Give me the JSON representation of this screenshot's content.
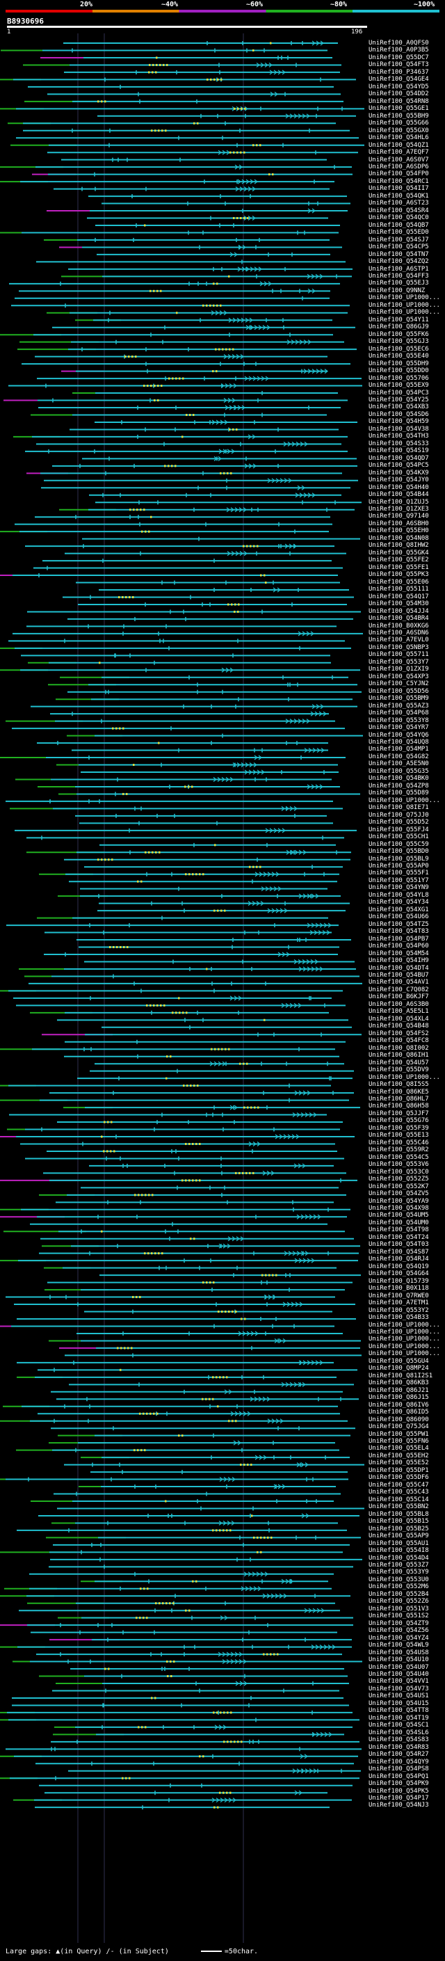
{
  "legend": {
    "labels": [
      "20%",
      "~40%",
      "~60%",
      "~80%",
      "~100%"
    ],
    "colors": [
      "#e00000",
      "#e08000",
      "#a020c0",
      "#20b020",
      "#20c0d0"
    ]
  },
  "header": {
    "sequence_id": "B8930696",
    "query_start": "1",
    "query_end": "196"
  },
  "hits": [
    "UniRef100_A0QFS0",
    "UniRef100_A0P3B5",
    "UniRef100_Q55DC7",
    "UniRef100_Q54FT3",
    "UniRef100_P34637",
    "UniRef100_Q54GE4",
    "UniRef100_Q54YD5",
    "UniRef100_Q54DD2",
    "UniRef100_Q54RN8",
    "UniRef100_Q55GE1",
    "UniRef100_Q55BH9",
    "UniRef100_Q55G66",
    "UniRef100_Q55GX0",
    "UniRef100_Q54HL6",
    "UniRef100_Q54QZ1",
    "UniRef100_A7EQF7",
    "UniRef100_A6S0V7",
    "UniRef100_A6SDP6",
    "UniRef100_Q54FP0",
    "UniRef100_Q54RC1",
    "UniRef100_Q54II7",
    "UniRef100_Q54QK1",
    "UniRef100_A6ST23",
    "UniRef100_Q54SR4",
    "UniRef100_Q54QC0",
    "UniRef100_Q54QB7",
    "UniRef100_Q55ED0",
    "UniRef100_Q54SJ7",
    "UniRef100_Q54CP5",
    "UniRef100_Q54TN7",
    "UniRef100_Q54ZQ2",
    "UniRef100_A6STP1",
    "UniRef100_Q54FF3",
    "UniRef100_Q55EJ3",
    "UniRef100_Q9NNZ",
    "UniRef100_UP1000...",
    "UniRef100_UP1000...",
    "UniRef100_UP1000...",
    "UniRef100_Q54Y11",
    "UniRef100_Q86GJ9",
    "UniRef100_Q55FK6",
    "UniRef100_Q55GJ3",
    "UniRef100_Q55EC6",
    "UniRef100_Q55E40",
    "UniRef100_Q55DH9",
    "UniRef100_Q55DD0",
    "UniRef100_Q55706",
    "UniRef100_Q55EX9",
    "UniRef100_Q54PC3",
    "UniRef100_Q54Y25",
    "UniRef100_Q54XB3",
    "UniRef100_Q54SD6",
    "UniRef100_Q54H59",
    "UniRef100_Q54V38",
    "UniRef100_Q54TH3",
    "UniRef100_Q54S33",
    "UniRef100_Q54S19",
    "UniRef100_Q54QD7",
    "UniRef100_Q54PC5",
    "UniRef100_Q54KX9",
    "UniRef100_Q54JY0",
    "UniRef100_Q54H40",
    "UniRef100_Q54B44",
    "UniRef100_Q1ZUJ5",
    "UniRef100_Q1ZXE3",
    "UniRef100_Q97140",
    "UniRef100_A6SBH0",
    "UniRef100_Q55EH0",
    "UniRef100_Q54N08",
    "UniRef100_Q8IHW2",
    "UniRef100_Q55GK4",
    "UniRef100_Q55FE2",
    "UniRef100_Q55FE1",
    "UniRef100_Q55PK3",
    "UniRef100_Q55E06",
    "UniRef100_Q55111",
    "UniRef100_Q54Q17",
    "UniRef100_Q54M30",
    "UniRef100_Q54JJ4",
    "UniRef100_Q54BR4",
    "UniRef100_B0XKG6",
    "UniRef100_A6SDN6",
    "UniRef100_A7EVL0",
    "UniRef100_Q5NBP3",
    "UniRef100_Q55711",
    "UniRef100_Q553Y7",
    "UniRef100_Q1ZXI9",
    "UniRef100_Q54XP3",
    "UniRef100_C5YJN2",
    "UniRef100_Q55D56",
    "UniRef100_Q55BM9",
    "UniRef100_Q55AZ3",
    "UniRef100_Q54P68",
    "UniRef100_Q553Y8",
    "UniRef100_Q54YR7",
    "UniRef100_Q54YQ6",
    "UniRef100_Q54UQ8",
    "UniRef100_Q54MP1",
    "UniRef100_Q54G82",
    "UniRef100_A5E5N0",
    "UniRef100_Q55G35",
    "UniRef100_Q54BK0",
    "UniRef100_Q54ZP8",
    "UniRef100_Q55D89",
    "UniRef100_UP1000...",
    "UniRef100_Q8IE71",
    "UniRef100_Q75JJ0",
    "UniRef100_Q55D52",
    "UniRef100_Q55FJ4",
    "UniRef100_Q55CH1",
    "UniRef100_Q55C59",
    "UniRef100_Q55BD0",
    "UniRef100_Q55BL9",
    "UniRef100_Q55AP0",
    "UniRef100_Q555F1",
    "UniRef100_Q551Y7",
    "UniRef100_Q54YN9",
    "UniRef100_Q54YL8",
    "UniRef100_Q54Y34",
    "UniRef100_Q54XG1",
    "UniRef100_Q54U66",
    "UniRef100_Q54TZ5",
    "UniRef100_Q54T83",
    "UniRef100_Q54PB7",
    "UniRef100_Q54P60",
    "UniRef100_Q54M54",
    "UniRef100_Q54IH9",
    "UniRef100_Q54DT4",
    "UniRef100_Q54BU7",
    "UniRef100_Q54AV1",
    "UniRef100_C7Q082",
    "UniRef100_B6KJF7",
    "UniRef100_A6S3B0",
    "UniRef100_A5E5L1",
    "UniRef100_Q54XL4",
    "UniRef100_Q54B48",
    "UniRef100_Q54FS2",
    "UniRef100_Q54FC8",
    "UniRef100_Q8I002",
    "UniRef100_Q86IH1",
    "UniRef100_Q54U57",
    "UniRef100_Q55DV9",
    "UniRef100_UP1000...",
    "UniRef100_Q8I5S5",
    "UniRef100_Q86KE5",
    "UniRef100_Q86HL7",
    "UniRef100_Q86H58",
    "UniRef100_Q5JJF7",
    "UniRef100_Q55G76",
    "UniRef100_Q55F39",
    "UniRef100_Q55E13",
    "UniRef100_Q55C46",
    "UniRef100_Q559R2",
    "UniRef100_Q554C5",
    "UniRef100_Q553V6",
    "UniRef100_Q553C0",
    "UniRef100_Q552Z5",
    "UniRef100_Q552K7",
    "UniRef100_Q54ZV5",
    "UniRef100_Q54YA9",
    "UniRef100_Q54X98",
    "UniRef100_Q54UM5",
    "UniRef100_Q54UM0",
    "UniRef100_Q54T98",
    "UniRef100_Q54T24",
    "UniRef100_Q54T03",
    "UniRef100_Q54S87",
    "UniRef100_Q54RJ4",
    "UniRef100_Q54Q19",
    "UniRef100_Q54G64",
    "UniRef100_Q15739",
    "UniRef100_B0X118",
    "UniRef100_Q7RWE0",
    "UniRef100_A7ETM1",
    "UniRef100_Q553Y2",
    "UniRef100_Q54B33",
    "UniRef100_UP1000...",
    "UniRef100_UP1000...",
    "UniRef100_UP1000...",
    "UniRef100_UP1000...",
    "UniRef100_UP1000...",
    "UniRef100_Q55GU4",
    "UniRef100_Q8MP24",
    "UniRef100_Q81I2S1",
    "UniRef100_Q86KB3",
    "UniRef100_Q86J21",
    "UniRef100_Q86J15",
    "UniRef100_Q86IV6",
    "UniRef100_Q86ID5",
    "UniRef100_Q86090",
    "UniRef100_Q75JG4",
    "UniRef100_Q55PW1",
    "UniRef100_Q55FN6",
    "UniRef100_Q55EL4",
    "UniRef100_Q55EH2",
    "UniRef100_Q55E52",
    "UniRef100_Q55DP1",
    "UniRef100_Q55DF6",
    "UniRef100_Q55C47",
    "UniRef100_Q55C43",
    "UniRef100_Q55C14",
    "UniRef100_Q55BN2",
    "UniRef100_Q55BL8",
    "UniRef100_Q55B15",
    "UniRef100_Q55B25",
    "UniRef100_Q55AP9",
    "UniRef100_Q55AU1",
    "UniRef100_Q554I8",
    "UniRef100_Q554D4",
    "UniRef100_Q553Z7",
    "UniRef100_Q553Y9",
    "UniRef100_Q553U0",
    "UniRef100_Q552M6",
    "UniRef100_Q552B4",
    "UniRef100_Q552Z6",
    "UniRef100_Q551V3",
    "UniRef100_Q551S2",
    "UniRef100_Q54ZT9",
    "UniRef100_Q54Z56",
    "UniRef100_Q54YZ4",
    "UniRef100_Q54WL9",
    "UniRef100_Q54US8",
    "UniRef100_Q54U10",
    "UniRef100_Q54U07",
    "UniRef100_Q54U40",
    "UniRef100_Q54VV1",
    "UniRef100_Q54V73",
    "UniRef100_Q54US1",
    "UniRef100_Q54U15",
    "UniRef100_Q54TT8",
    "UniRef100_Q54T19",
    "UniRef100_Q54SC1",
    "UniRef100_Q54SL6",
    "UniRef100_Q54S83",
    "UniRef100_Q54R83",
    "UniRef100_Q54R27",
    "UniRef100_Q54QY9",
    "UniRef100_Q54PS8",
    "UniRef100_Q54PQ1",
    "UniRef100_Q54PK9",
    "UniRef100_Q54PK5",
    "UniRef100_Q54P17",
    "UniRef100_Q54NJ3"
  ],
  "footer": {
    "gap_label": "Large gaps:",
    "query_gap_label": "(in Query)",
    "subject_gap_label": "(in Subject)",
    "scale_label": "=50char."
  }
}
